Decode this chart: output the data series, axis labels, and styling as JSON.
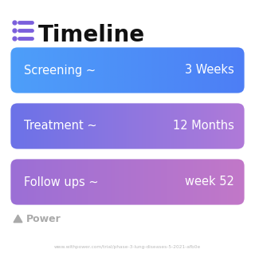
{
  "title": "Timeline",
  "title_fontsize": 20,
  "title_color": "#111111",
  "icon_color": "#7B5FDC",
  "background_color": "#ffffff",
  "rows": [
    {
      "label": "Screening ~",
      "value": "3 Weeks",
      "color_left": "#4d9ffa",
      "color_right": "#4d7ef5"
    },
    {
      "label": "Treatment ~",
      "value": "12 Months",
      "color_left": "#6b72e8",
      "color_right": "#b07ad8"
    },
    {
      "label": "Follow ups ~",
      "value": "week 52",
      "color_left": "#9b6fd6",
      "color_right": "#c278c8"
    }
  ],
  "power_text": "Power",
  "power_color": "#aaaaaa",
  "watermark": "www.withpower.com/trial/phase-3-lung-diseases-5-2021-afb0e",
  "watermark_color": "#bbbbbb",
  "label_fontsize": 10.5,
  "value_fontsize": 10.5,
  "text_color": "#ffffff"
}
